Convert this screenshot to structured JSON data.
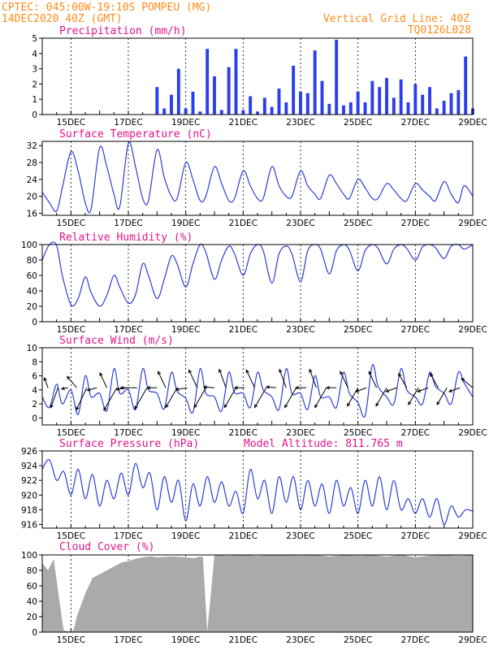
{
  "header": {
    "left_line1": "CPTEC:   045:00W-19:10S   POMPEU (MG)",
    "left_line2": "14DEC2020 40Z (GMT)",
    "right_line1": "Vertical Grid Line: 40Z",
    "right_line2": "TQ0126L028"
  },
  "colors": {
    "header": "#ff8c1a",
    "panel_title": "#e0148c",
    "series_line": "#2e3fd6",
    "precip_bar": "#2a3df0",
    "cloud_fill": "#aaaaaa",
    "wind_arrow": "#000000"
  },
  "x_axis": {
    "tick_labels": [
      "15DEC",
      "17DEC",
      "19DEC",
      "21DEC",
      "23DEC",
      "25DEC",
      "27DEC",
      "29DEC"
    ]
  },
  "chart_data": [
    {
      "id": "precip",
      "type": "bar",
      "title": "Precipitation (mm/h)",
      "ylim": [
        0,
        5
      ],
      "yticks": [
        0,
        1,
        2,
        3,
        4,
        5
      ],
      "x_days": [
        18.0,
        18.25,
        18.5,
        18.75,
        19.0,
        19.25,
        19.5,
        19.75,
        20.0,
        20.25,
        20.5,
        20.75,
        21.0,
        21.25,
        21.5,
        21.75,
        22.0,
        22.25,
        22.5,
        22.75,
        23.0,
        23.25,
        23.5,
        23.75,
        24.0,
        24.25,
        24.5,
        24.75,
        25.0,
        25.25,
        25.5,
        25.75,
        26.0,
        26.25,
        26.5,
        26.75,
        27.0,
        27.25,
        27.5,
        27.75,
        28.0,
        28.25,
        28.5,
        28.75,
        29.0
      ],
      "values": [
        1.8,
        0.4,
        1.3,
        3.0,
        0.4,
        1.5,
        0.2,
        4.3,
        2.5,
        0.3,
        3.1,
        4.3,
        0.3,
        1.2,
        0.2,
        1.1,
        0.5,
        1.7,
        0.8,
        3.2,
        1.5,
        1.4,
        4.2,
        2.2,
        0.7,
        4.9,
        0.6,
        0.8,
        1.5,
        0.8,
        2.2,
        1.8,
        2.4,
        1.1,
        2.3,
        0.8,
        2.0,
        1.3,
        1.8,
        0.4,
        0.9,
        1.4,
        1.6,
        3.8,
        0.4
      ]
    },
    {
      "id": "temp",
      "type": "line",
      "title": "Surface Temperature (nC)",
      "ylim": [
        15.5,
        33
      ],
      "yticks": [
        16,
        20,
        24,
        28,
        32
      ],
      "x_days": [
        14.0,
        14.25,
        14.5,
        14.7,
        15.0,
        15.25,
        15.5,
        15.7,
        16.0,
        16.25,
        16.5,
        16.7,
        17.0,
        17.25,
        17.5,
        17.7,
        18.0,
        18.25,
        18.5,
        18.7,
        19.0,
        19.25,
        19.5,
        19.7,
        20.0,
        20.25,
        20.5,
        20.7,
        21.0,
        21.25,
        21.5,
        21.7,
        22.0,
        22.25,
        22.5,
        22.7,
        23.0,
        23.25,
        23.5,
        23.7,
        24.0,
        24.25,
        24.5,
        24.7,
        25.0,
        25.25,
        25.5,
        25.7,
        26.0,
        26.25,
        26.5,
        26.7,
        27.0,
        27.25,
        27.5,
        27.7,
        28.0,
        28.25,
        28.5,
        28.7,
        29.0
      ],
      "values": [
        21,
        18.5,
        16.5,
        22,
        30.5,
        26,
        18.5,
        17,
        31.5,
        27,
        20.5,
        17.5,
        32.5,
        27,
        19.5,
        19,
        31,
        24.5,
        20,
        19.5,
        28,
        24,
        19,
        20,
        27,
        23,
        19,
        19.5,
        26,
        22.5,
        19.5,
        19.5,
        27,
        22.5,
        20,
        20,
        26,
        22.5,
        20.5,
        19.5,
        25,
        23,
        20.5,
        19.5,
        24,
        22,
        19.5,
        19.5,
        23,
        21.5,
        19.5,
        19,
        23,
        21.5,
        20,
        19,
        23.5,
        20.5,
        18.5,
        22.5,
        20
      ]
    },
    {
      "id": "rh",
      "type": "line",
      "title": "Relative Humidity (%)",
      "ylim": [
        0,
        100
      ],
      "yticks": [
        0,
        20,
        40,
        60,
        80,
        100
      ],
      "x_days": [
        14.0,
        14.25,
        14.5,
        14.7,
        15.0,
        15.25,
        15.5,
        15.7,
        16.0,
        16.25,
        16.5,
        16.7,
        17.0,
        17.25,
        17.5,
        17.7,
        18.0,
        18.25,
        18.5,
        18.7,
        19.0,
        19.25,
        19.5,
        19.7,
        20.0,
        20.25,
        20.5,
        20.7,
        21.0,
        21.25,
        21.5,
        21.7,
        22.0,
        22.25,
        22.5,
        22.7,
        23.0,
        23.25,
        23.5,
        23.7,
        24.0,
        24.25,
        24.5,
        24.7,
        25.0,
        25.25,
        25.5,
        25.7,
        26.0,
        26.25,
        26.5,
        26.7,
        27.0,
        27.25,
        27.5,
        27.7,
        28.0,
        28.25,
        28.5,
        28.7,
        29.0
      ],
      "values": [
        80,
        100,
        99,
        60,
        22,
        30,
        58,
        38,
        20,
        34,
        60,
        45,
        24,
        35,
        75,
        60,
        30,
        55,
        85,
        75,
        45,
        75,
        100,
        90,
        55,
        80,
        98,
        88,
        60,
        88,
        100,
        92,
        50,
        88,
        98,
        88,
        52,
        92,
        100,
        94,
        62,
        92,
        100,
        93,
        66,
        92,
        100,
        95,
        75,
        94,
        100,
        95,
        80,
        97,
        100,
        96,
        82,
        98,
        100,
        94,
        100
      ]
    },
    {
      "id": "wind",
      "type": "line",
      "title": "Surface Wind (m/s)",
      "ylim": [
        -1,
        10
      ],
      "yticks": [
        0,
        2,
        4,
        6,
        8,
        10
      ],
      "x_days": [
        14.0,
        14.25,
        14.5,
        14.7,
        15.0,
        15.25,
        15.5,
        15.7,
        16.0,
        16.25,
        16.5,
        16.7,
        17.0,
        17.25,
        17.5,
        17.7,
        18.0,
        18.25,
        18.5,
        18.7,
        19.0,
        19.25,
        19.5,
        19.7,
        20.0,
        20.25,
        20.5,
        20.7,
        21.0,
        21.25,
        21.5,
        21.7,
        22.0,
        22.25,
        22.5,
        22.7,
        23.0,
        23.25,
        23.5,
        23.7,
        24.0,
        24.25,
        24.5,
        24.7,
        25.0,
        25.25,
        25.5,
        25.7,
        26.0,
        26.25,
        26.5,
        26.7,
        27.0,
        27.25,
        27.5,
        27.7,
        28.0,
        28.25,
        28.5,
        28.7,
        29.0
      ],
      "values": [
        3,
        1.5,
        4.8,
        2,
        4,
        0.5,
        6,
        3,
        3.5,
        1,
        7,
        3.5,
        4,
        1.2,
        7,
        4,
        3.5,
        1.3,
        6.5,
        3.8,
        2.8,
        0.8,
        7,
        3.5,
        3,
        1,
        6.5,
        3.6,
        3.5,
        1.5,
        6.5,
        4,
        3,
        1.2,
        7,
        3.5,
        3.5,
        1.2,
        6,
        3,
        3,
        1.5,
        6.5,
        3.5,
        2.2,
        0.3,
        7.5,
        4.5,
        3,
        2,
        7,
        4,
        3,
        2,
        6.5,
        4.5,
        3.5,
        2,
        6.5,
        5,
        3
      ],
      "arrows_x_days": [
        14.2,
        14.55,
        14.9,
        15.2,
        15.55,
        15.9,
        16.25,
        16.6,
        16.95,
        17.3,
        17.65,
        18.0,
        18.3,
        18.7,
        19.05,
        19.4,
        19.7,
        20.0,
        20.4,
        20.75,
        21.05,
        21.4,
        21.8,
        22.15,
        22.5,
        22.85,
        23.2,
        23.55,
        23.9,
        24.25,
        24.65,
        25.0,
        25.3,
        25.65,
        26.0,
        26.35,
        26.7,
        27.1,
        27.45,
        27.8,
        28.1,
        28.55,
        29.0
      ],
      "arrows_angle_deg": [
        250,
        110,
        170,
        230,
        115,
        165,
        245,
        120,
        170,
        180,
        120,
        180,
        245,
        120,
        170,
        245,
        120,
        185,
        250,
        120,
        180,
        245,
        120,
        185,
        250,
        120,
        180,
        250,
        120,
        180,
        245,
        120,
        160,
        245,
        120,
        160,
        240,
        120,
        160,
        240,
        120,
        160,
        220
      ],
      "arrows_len_px": [
        13,
        26,
        8,
        18,
        30,
        12,
        20,
        32,
        13,
        20,
        30,
        12,
        22,
        28,
        14,
        24,
        28,
        13,
        24,
        28,
        12,
        24,
        28,
        12,
        24,
        28,
        13,
        24,
        28,
        12,
        22,
        26,
        14,
        22,
        26,
        14,
        20,
        24,
        14,
        20,
        24,
        14,
        18
      ]
    },
    {
      "id": "pressure",
      "type": "line",
      "title": "Surface Pressure (hPa)",
      "annotation": "Model Altitude: 811.765 m",
      "ylim": [
        915.5,
        926
      ],
      "yticks": [
        916,
        918,
        920,
        922,
        924,
        926
      ],
      "x_days": [
        14.0,
        14.25,
        14.5,
        14.75,
        15.0,
        15.25,
        15.5,
        15.75,
        16.0,
        16.25,
        16.5,
        16.75,
        17.0,
        17.25,
        17.5,
        17.75,
        18.0,
        18.25,
        18.5,
        18.75,
        19.0,
        19.25,
        19.5,
        19.75,
        20.0,
        20.25,
        20.5,
        20.75,
        21.0,
        21.25,
        21.5,
        21.75,
        22.0,
        22.25,
        22.5,
        22.75,
        23.0,
        23.25,
        23.5,
        23.75,
        24.0,
        24.25,
        24.5,
        24.75,
        25.0,
        25.25,
        25.5,
        25.75,
        26.0,
        26.25,
        26.5,
        26.75,
        27.0,
        27.25,
        27.5,
        27.75,
        28.0,
        28.25,
        28.5,
        28.75,
        29.0
      ],
      "values": [
        923.5,
        924.8,
        922,
        923.2,
        920,
        923.5,
        919.5,
        922.8,
        918.5,
        922,
        919.5,
        923,
        920,
        924.3,
        921,
        923,
        918,
        922.5,
        919,
        922,
        916.5,
        921.5,
        918.5,
        922.5,
        919,
        921.8,
        918.5,
        920.5,
        917.5,
        923.5,
        919.5,
        922,
        917.5,
        922.5,
        919,
        922.5,
        918,
        922,
        918.5,
        921.5,
        917.5,
        922,
        918.5,
        921,
        917.5,
        922,
        918.5,
        922.5,
        918,
        922,
        918,
        919.5,
        917.5,
        919.5,
        917,
        919.5,
        916,
        918.5,
        917,
        918,
        917.8
      ]
    },
    {
      "id": "cloud",
      "type": "area",
      "title": "Cloud Cover (%)",
      "ylim": [
        0,
        100
      ],
      "yticks": [
        0,
        20,
        40,
        60,
        80,
        100
      ],
      "x_days": [
        14.0,
        14.2,
        14.4,
        14.6,
        14.75,
        15.0,
        15.1,
        15.2,
        15.5,
        15.75,
        16.0,
        16.25,
        16.5,
        16.75,
        17.0,
        17.25,
        17.5,
        17.75,
        18.0,
        18.5,
        19.0,
        19.3,
        19.5,
        19.6,
        19.75,
        20.0,
        20.5,
        21.0,
        21.5,
        22.0,
        22.5,
        23.0,
        23.5,
        24.0,
        24.5,
        25.0,
        25.5,
        26.0,
        26.5,
        27.0,
        27.5,
        28.0,
        28.5,
        29.0
      ],
      "values": [
        90,
        80,
        95,
        40,
        2,
        1,
        3,
        20,
        50,
        70,
        75,
        80,
        85,
        90,
        92,
        95,
        97,
        98,
        97,
        98,
        97,
        96,
        98,
        97,
        1,
        100,
        99,
        100,
        99,
        100,
        100,
        99,
        100,
        98,
        100,
        99,
        100,
        98,
        100,
        97,
        99,
        100,
        99,
        100
      ]
    }
  ]
}
